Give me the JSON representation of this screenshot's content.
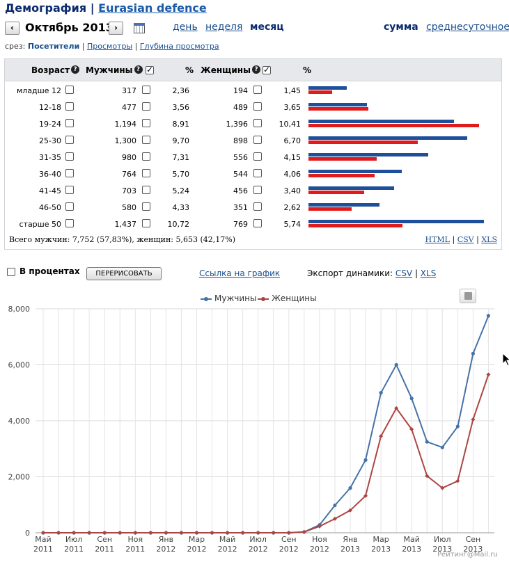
{
  "header": {
    "title": "Демография",
    "separator": "|",
    "site": "Eurasian defence"
  },
  "nav": {
    "prev": "‹",
    "next": "›",
    "month": "Октябрь 2013",
    "periods": [
      "день",
      "неделя",
      "месяц"
    ],
    "modes": [
      "сумма",
      "среднесуточное"
    ]
  },
  "slice": {
    "label": "срез:",
    "current": "Посетители",
    "options": [
      "Просмотры",
      "Глубина просмотра"
    ]
  },
  "table": {
    "headers": {
      "age": "Возраст",
      "men": "Мужчины",
      "pct1": "%",
      "women": "Женщины",
      "pct2": "%"
    },
    "rows": [
      {
        "age": "младше 12",
        "men": "317",
        "men_pct": "2,36",
        "women": "194",
        "women_pct": "1,45",
        "m": 2.36,
        "f": 1.45
      },
      {
        "age": "12-18",
        "men": "477",
        "men_pct": "3,56",
        "women": "489",
        "women_pct": "3,65",
        "m": 3.56,
        "f": 3.65
      },
      {
        "age": "19-24",
        "men": "1,194",
        "men_pct": "8,91",
        "women": "1,396",
        "women_pct": "10,41",
        "m": 8.91,
        "f": 10.41
      },
      {
        "age": "25-30",
        "men": "1,300",
        "men_pct": "9,70",
        "women": "898",
        "women_pct": "6,70",
        "m": 9.7,
        "f": 6.7
      },
      {
        "age": "31-35",
        "men": "980",
        "men_pct": "7,31",
        "women": "556",
        "women_pct": "4,15",
        "m": 7.31,
        "f": 4.15
      },
      {
        "age": "36-40",
        "men": "764",
        "men_pct": "5,70",
        "women": "544",
        "women_pct": "4,06",
        "m": 5.7,
        "f": 4.06
      },
      {
        "age": "41-45",
        "men": "703",
        "men_pct": "5,24",
        "women": "456",
        "women_pct": "3,40",
        "m": 5.24,
        "f": 3.4
      },
      {
        "age": "46-50",
        "men": "580",
        "men_pct": "4,33",
        "women": "351",
        "women_pct": "2,62",
        "m": 4.33,
        "f": 2.62
      },
      {
        "age": "старше 50",
        "men": "1,437",
        "men_pct": "10,72",
        "women": "769",
        "women_pct": "5,74",
        "m": 10.72,
        "f": 5.74
      }
    ],
    "total": "Всего мужчин: 7,752 (57,83%), женщин: 5,653 (42,17%)",
    "exports": [
      "HTML",
      "CSV",
      "XLS"
    ],
    "export_sep": "|"
  },
  "controls": {
    "percent_label": "В процентах",
    "redraw": "ПЕРЕРИСОВАТЬ",
    "graph_link": "Ссылка на график",
    "dyn_label": "Экспорт динамики:",
    "dyn_exports": [
      "CSV",
      "XLS"
    ]
  },
  "colors": {
    "men": "#4572a7",
    "women": "#aa4643",
    "bar_men": "#1d4f9b",
    "bar_women": "#e01b1b"
  },
  "chart_data": {
    "type": "line",
    "x": [
      "Май 2011",
      "",
      "Июл 2011",
      "",
      "Сен 2011",
      "",
      "Ноя 2011",
      "",
      "Янв 2012",
      "",
      "Мар 2012",
      "",
      "Май 2012",
      "",
      "Июл 2012",
      "",
      "Сен 2012",
      "",
      "Ноя 2012",
      "",
      "Янв 2013",
      "",
      "Мар 2013",
      "",
      "Май 2013",
      "",
      "Июл 2013",
      "",
      "Сен 2013",
      ""
    ],
    "tick_labels": [
      [
        "Май",
        "2011"
      ],
      [
        "Июл",
        "2011"
      ],
      [
        "Сен",
        "2011"
      ],
      [
        "Ноя",
        "2011"
      ],
      [
        "Янв",
        "2012"
      ],
      [
        "Мар",
        "2012"
      ],
      [
        "Май",
        "2012"
      ],
      [
        "Июл",
        "2012"
      ],
      [
        "Сен",
        "2012"
      ],
      [
        "Ноя",
        "2012"
      ],
      [
        "Янв",
        "2013"
      ],
      [
        "Мар",
        "2013"
      ],
      [
        "Май",
        "2013"
      ],
      [
        "Июл",
        "2013"
      ],
      [
        "Сен",
        "2013"
      ]
    ],
    "series": [
      {
        "name": "Мужчины",
        "values": [
          0,
          0,
          0,
          0,
          0,
          0,
          0,
          0,
          0,
          0,
          0,
          0,
          0,
          0,
          0,
          0,
          0,
          30,
          280,
          980,
          1600,
          2600,
          5000,
          6000,
          4800,
          3250,
          3050,
          3800,
          6400,
          7752
        ]
      },
      {
        "name": "Женщины",
        "values": [
          0,
          0,
          0,
          0,
          0,
          0,
          0,
          0,
          0,
          0,
          0,
          0,
          0,
          0,
          0,
          0,
          0,
          30,
          230,
          500,
          800,
          1320,
          3450,
          4450,
          3700,
          2030,
          1600,
          1850,
          4050,
          5653
        ]
      }
    ],
    "yticks": [
      "0",
      "2,000",
      "4,000",
      "6,000",
      "8,000"
    ],
    "ylim": [
      0,
      8000
    ],
    "grid": true,
    "legend": "top-center"
  },
  "credit": "Рейтинг@Mail.ru"
}
